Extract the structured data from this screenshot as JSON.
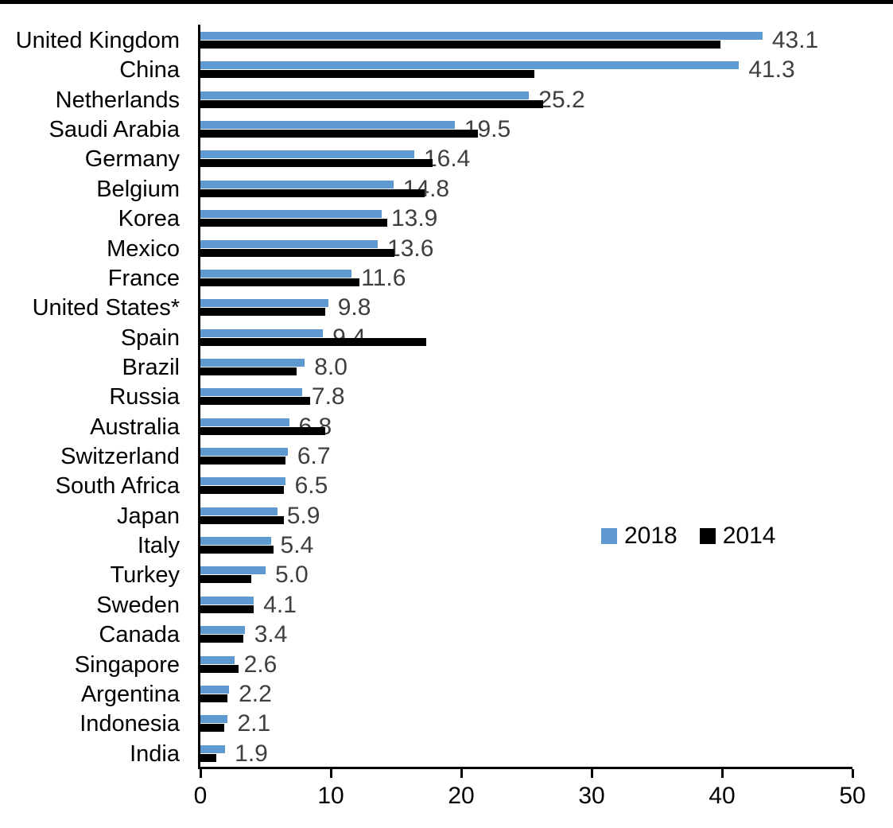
{
  "chart_data": {
    "type": "bar",
    "orientation": "horizontal",
    "title": "",
    "xlabel": "",
    "ylabel": "",
    "xlim": [
      0,
      50
    ],
    "x_ticks": [
      0,
      10,
      20,
      30,
      40,
      50
    ],
    "grid": false,
    "legend_position": "middle-right",
    "data_labels": "2018 series only, one decimal, outside bar end",
    "categories": [
      "United Kingdom",
      "China",
      "Netherlands",
      "Saudi Arabia",
      "Germany",
      "Belgium",
      "Korea",
      "Mexico",
      "France",
      "United States*",
      "Spain",
      "Brazil",
      "Russia",
      "Australia",
      "Switzerland",
      "South Africa",
      "Japan",
      "Italy",
      "Turkey",
      "Sweden",
      "Canada",
      "Singapore",
      "Argentina",
      "Indonesia",
      "India"
    ],
    "series": [
      {
        "name": "2018",
        "color": "#5E9AD0",
        "values": [
          43.1,
          41.3,
          25.2,
          19.5,
          16.4,
          14.8,
          13.9,
          13.6,
          11.6,
          9.8,
          9.4,
          8.0,
          7.8,
          6.8,
          6.7,
          6.5,
          5.9,
          5.4,
          5.0,
          4.1,
          3.4,
          2.6,
          2.2,
          2.1,
          1.9
        ]
      },
      {
        "name": "2014",
        "color": "#000000",
        "values": [
          39.9,
          25.6,
          26.3,
          21.3,
          17.8,
          17.2,
          14.3,
          14.9,
          12.2,
          9.6,
          17.3,
          7.4,
          8.4,
          9.6,
          6.5,
          6.4,
          6.4,
          5.6,
          3.9,
          4.1,
          3.3,
          2.9,
          2.1,
          1.8,
          1.2
        ]
      }
    ],
    "data_label_values": [
      "43.1",
      "41.3",
      "25.2",
      "19.5",
      "16.4",
      "14.8",
      "13.9",
      "13.6",
      "11.6",
      "9.8",
      "9.4",
      "8.0",
      "7.8",
      "6.8",
      "6.7",
      "6.5",
      "5.9",
      "5.4",
      "5.0",
      "4.1",
      "3.4",
      "2.6",
      "2.2",
      "2.1",
      "1.9"
    ]
  },
  "colors": {
    "series_2018": "#5E9AD0",
    "series_2014": "#000000",
    "axis": "#000000",
    "data_label_text": "#3f3f3f",
    "category_text": "#000000"
  }
}
